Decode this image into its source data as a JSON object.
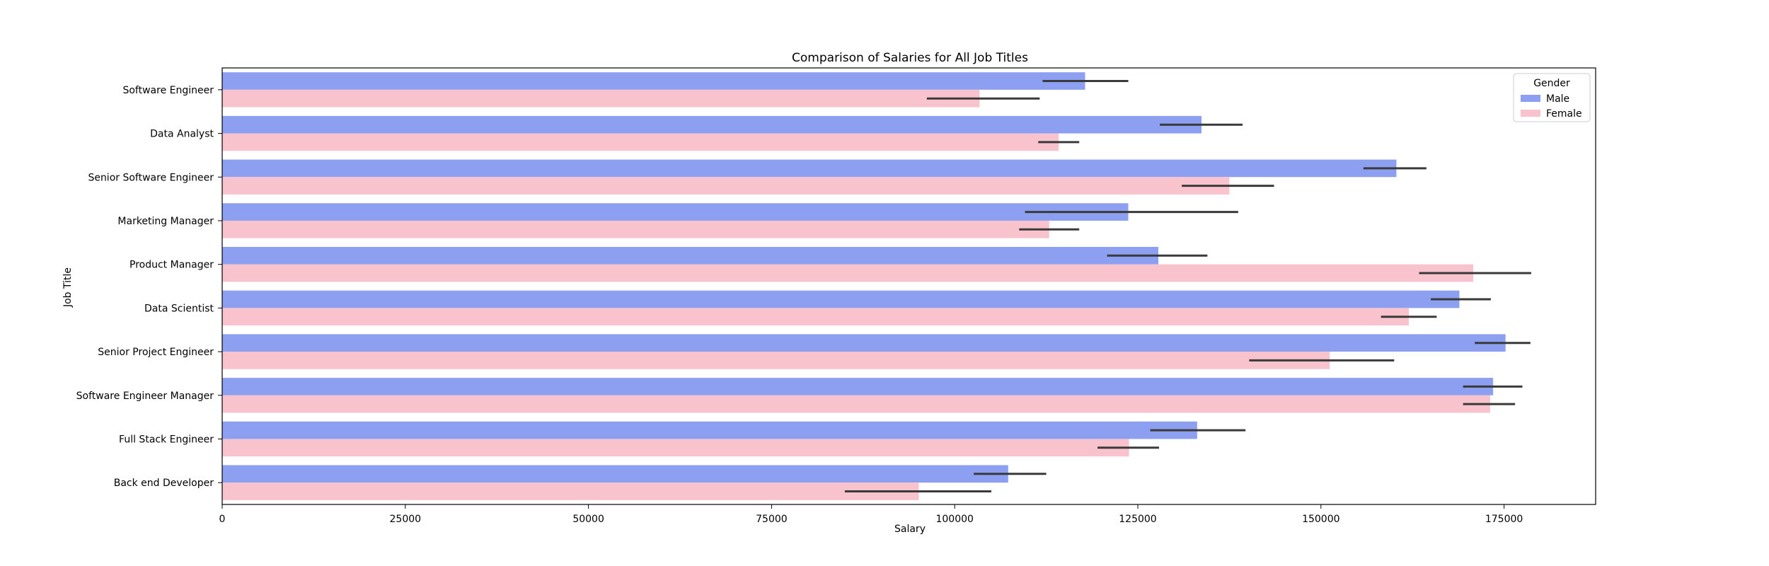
{
  "chart_data": {
    "type": "bar",
    "orientation": "horizontal",
    "title": "Comparison of Salaries for All Job Titles",
    "xlabel": "Salary",
    "ylabel": "Job Title",
    "xlim": [
      0,
      187500
    ],
    "xticks": [
      0,
      25000,
      50000,
      75000,
      100000,
      125000,
      150000,
      175000
    ],
    "grid": false,
    "legend": {
      "title": "Gender",
      "position": "top-right"
    },
    "categories": [
      "Software Engineer",
      "Data Analyst",
      "Senior Software Engineer",
      "Marketing Manager",
      "Product Manager",
      "Data Scientist",
      "Senior Project Engineer",
      "Software Engineer Manager",
      "Full Stack Engineer",
      "Back end Developer"
    ],
    "series": [
      {
        "name": "Male",
        "color": "#8c9ff0",
        "values": [
          117800,
          133700,
          160300,
          123700,
          127800,
          168900,
          175200,
          173500,
          133100,
          107300
        ],
        "error": [
          [
            112000,
            123700
          ],
          [
            128000,
            139300
          ],
          [
            155800,
            164400
          ],
          [
            109600,
            138700
          ],
          [
            120800,
            134500
          ],
          [
            165000,
            173200
          ],
          [
            171000,
            178600
          ],
          [
            169400,
            177500
          ],
          [
            126700,
            139700
          ],
          [
            102600,
            112500
          ]
        ]
      },
      {
        "name": "Female",
        "color": "#f8c3cd",
        "values": [
          103400,
          114200,
          137500,
          112900,
          170800,
          162000,
          151200,
          173100,
          123800,
          95100
        ],
        "error": [
          [
            96200,
            111600
          ],
          [
            111400,
            117000
          ],
          [
            131000,
            143600
          ],
          [
            108800,
            117000
          ],
          [
            163400,
            178700
          ],
          [
            158200,
            165800
          ],
          [
            140200,
            160000
          ],
          [
            169400,
            176500
          ],
          [
            119500,
            127900
          ],
          [
            85000,
            105000
          ]
        ]
      }
    ]
  }
}
